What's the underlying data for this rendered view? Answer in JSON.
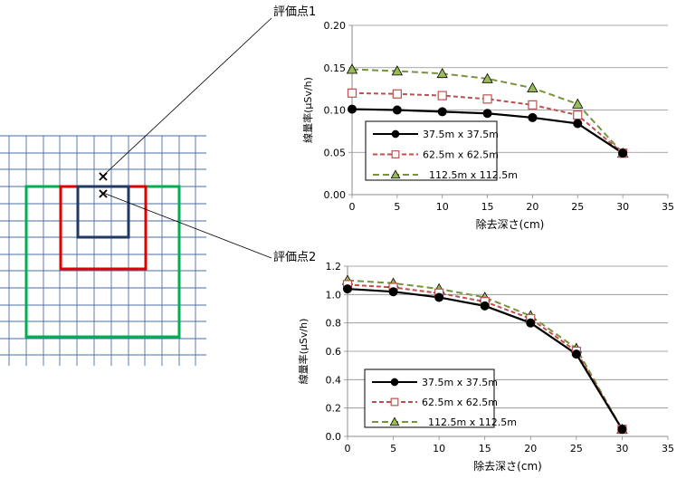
{
  "labels": {
    "point1": "評価点1",
    "point2": "評価点2"
  },
  "grid_diagram": {
    "marker_symbol": "×",
    "colors": {
      "grid": "#4a6fa5",
      "small_square": "#1f3864",
      "medium_square": "#e00000",
      "large_square": "#00b050"
    }
  },
  "chart_data": [
    {
      "type": "line",
      "xlabel": "除去深さ(cm)",
      "ylabel": "線量率(μSv/h)",
      "xlim": [
        0,
        35
      ],
      "ylim": [
        0,
        0.2
      ],
      "x_ticks": [
        "0",
        "5",
        "10",
        "15",
        "20",
        "25",
        "30",
        "35"
      ],
      "y_ticks": [
        "0.00",
        "0.05",
        "0.10",
        "0.15",
        "0.20"
      ],
      "x": [
        0,
        5,
        10,
        15,
        20,
        25,
        30
      ],
      "legend_position": "bottom-left",
      "series": [
        {
          "name": "37.5m x 37.5m",
          "values": [
            0.101,
            0.1,
            0.098,
            0.096,
            0.091,
            0.084,
            0.049
          ],
          "color": "#000000",
          "style": "solid",
          "marker": "circle"
        },
        {
          "name": "62.5m x 62.5m",
          "values": [
            0.12,
            0.119,
            0.117,
            0.113,
            0.106,
            0.094,
            0.049
          ],
          "color": "#c0504d",
          "style": "dashed",
          "marker": "square"
        },
        {
          "name": "112.5m x 112.5m",
          "values": [
            0.148,
            0.146,
            0.143,
            0.137,
            0.126,
            0.107,
            0.049
          ],
          "color": "#77933c",
          "style": "dashed",
          "marker": "triangle"
        }
      ]
    },
    {
      "type": "line",
      "xlabel": "除去深さ(cm)",
      "ylabel": "線量率(μSv/h)",
      "xlim": [
        0,
        35
      ],
      "ylim": [
        0,
        1.2
      ],
      "x_ticks": [
        "0",
        "5",
        "10",
        "15",
        "20",
        "25",
        "30",
        "35"
      ],
      "y_ticks": [
        "0.0",
        "0.2",
        "0.4",
        "0.6",
        "0.8",
        "1.0",
        "1.2"
      ],
      "x": [
        0,
        5,
        10,
        15,
        20,
        25,
        30
      ],
      "legend_position": "bottom-left",
      "series": [
        {
          "name": "37.5m x 37.5m",
          "values": [
            1.04,
            1.02,
            0.98,
            0.92,
            0.8,
            0.58,
            0.05
          ],
          "color": "#000000",
          "style": "solid",
          "marker": "circle"
        },
        {
          "name": "62.5m x 62.5m",
          "values": [
            1.07,
            1.05,
            1.01,
            0.95,
            0.83,
            0.6,
            0.05
          ],
          "color": "#c0504d",
          "style": "dashed",
          "marker": "square"
        },
        {
          "name": "112.5m x 112.5m",
          "values": [
            1.1,
            1.08,
            1.04,
            0.98,
            0.85,
            0.62,
            0.05
          ],
          "color": "#77933c",
          "style": "dashed",
          "marker": "triangle"
        }
      ]
    }
  ]
}
